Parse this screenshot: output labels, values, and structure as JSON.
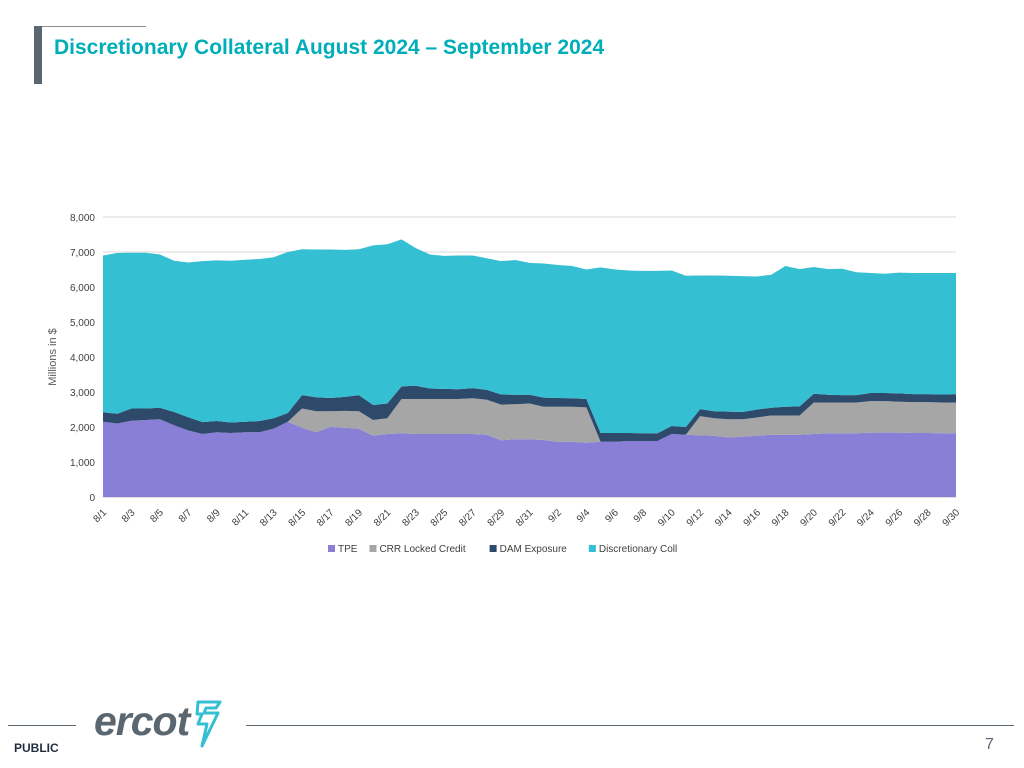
{
  "slide": {
    "title": "Discretionary Collateral August 2024 – September 2024",
    "classification": "PUBLIC",
    "page_number": "7",
    "logo_text": "ercot"
  },
  "colors": {
    "title": "#00aeb9",
    "TPE": "#8a7fd6",
    "CRR Locked Credit": "#a6a6a6",
    "DAM Exposure": "#2e4a6b",
    "Discretionary Coll": "#35bfd3",
    "logo": "#5b6770",
    "logo_accent": "#35bfd3"
  },
  "chart_data": {
    "type": "area",
    "stacked": true,
    "ylabel": "Millions in $",
    "xlabel": "",
    "ylim": [
      0,
      8000
    ],
    "yticks": [
      0,
      1000,
      2000,
      3000,
      4000,
      5000,
      6000,
      7000,
      8000
    ],
    "ytick_labels": [
      "0",
      "1,000",
      "2,000",
      "3,000",
      "4,000",
      "5,000",
      "6,000",
      "7,000",
      "8,000"
    ],
    "grid": true,
    "legend_position": "bottom",
    "x": [
      "8/1",
      "8/2",
      "8/3",
      "8/4",
      "8/5",
      "8/6",
      "8/7",
      "8/8",
      "8/9",
      "8/10",
      "8/11",
      "8/12",
      "8/13",
      "8/14",
      "8/15",
      "8/16",
      "8/17",
      "8/18",
      "8/19",
      "8/20",
      "8/21",
      "8/22",
      "8/23",
      "8/24",
      "8/25",
      "8/26",
      "8/27",
      "8/28",
      "8/29",
      "8/30",
      "8/31",
      "9/1",
      "9/2",
      "9/3",
      "9/4",
      "9/5",
      "9/6",
      "9/7",
      "9/8",
      "9/9",
      "9/10",
      "9/11",
      "9/12",
      "9/13",
      "9/14",
      "9/15",
      "9/16",
      "9/17",
      "9/18",
      "9/19",
      "9/20",
      "9/21",
      "9/22",
      "9/23",
      "9/24",
      "9/25",
      "9/26",
      "9/27",
      "9/28",
      "9/29",
      "9/30"
    ],
    "xtick_labels": [
      "8/1",
      "8/3",
      "8/5",
      "8/7",
      "8/9",
      "8/11",
      "8/13",
      "8/15",
      "8/17",
      "8/19",
      "8/21",
      "8/23",
      "8/25",
      "8/27",
      "8/29",
      "8/31",
      "9/2",
      "9/4",
      "9/6",
      "9/8",
      "9/10",
      "9/12",
      "9/14",
      "9/16",
      "9/18",
      "9/20",
      "9/22",
      "9/24",
      "9/26",
      "9/28",
      "9/30"
    ],
    "series": [
      {
        "name": "TPE",
        "values": [
          2150,
          2100,
          2180,
          2200,
          2220,
          2050,
          1900,
          1800,
          1850,
          1830,
          1850,
          1850,
          1950,
          2150,
          1980,
          1850,
          2000,
          1980,
          1950,
          1750,
          1800,
          1820,
          1800,
          1800,
          1800,
          1800,
          1800,
          1780,
          1620,
          1650,
          1650,
          1630,
          1580,
          1580,
          1550,
          1580,
          1580,
          1600,
          1600,
          1600,
          1800,
          1780,
          1760,
          1750,
          1700,
          1720,
          1750,
          1780,
          1780,
          1780,
          1800,
          1820,
          1820,
          1820,
          1840,
          1840,
          1840,
          1830,
          1830,
          1820,
          1820
        ]
      },
      {
        "name": "CRR Locked Credit",
        "values": [
          0,
          0,
          0,
          0,
          0,
          0,
          0,
          0,
          0,
          0,
          0,
          0,
          0,
          0,
          550,
          600,
          450,
          480,
          500,
          450,
          450,
          980,
          1000,
          1000,
          1000,
          1000,
          1020,
          1000,
          1020,
          1000,
          1020,
          950,
          1000,
          1000,
          1010,
          0,
          0,
          0,
          0,
          0,
          0,
          0,
          550,
          500,
          520,
          500,
          520,
          550,
          550,
          550,
          900,
          880,
          880,
          880,
          900,
          900,
          880,
          880,
          880,
          880,
          880
        ]
      },
      {
        "name": "DAM Exposure",
        "values": [
          270,
          280,
          350,
          330,
          330,
          380,
          380,
          340,
          320,
          300,
          300,
          320,
          300,
          250,
          380,
          400,
          380,
          400,
          460,
          430,
          420,
          360,
          380,
          300,
          290,
          280,
          290,
          280,
          290,
          270,
          250,
          260,
          250,
          240,
          240,
          250,
          250,
          230,
          220,
          220,
          230,
          220,
          200,
          200,
          220,
          210,
          230,
          220,
          250,
          260,
          250,
          220,
          210,
          210,
          230,
          230,
          240,
          230,
          230,
          230,
          240
        ]
      },
      {
        "name": "Discretionary Coll",
        "values": [
          4480,
          4590,
          4450,
          4450,
          4380,
          4320,
          4420,
          4600,
          4590,
          4620,
          4630,
          4630,
          4600,
          4600,
          4170,
          4220,
          4240,
          4200,
          4170,
          4560,
          4550,
          4200,
          3930,
          3830,
          3800,
          3820,
          3790,
          3760,
          3810,
          3850,
          3770,
          3830,
          3800,
          3780,
          3700,
          4730,
          4670,
          4640,
          4640,
          4640,
          4440,
          4320,
          3820,
          3880,
          3880,
          3880,
          3800,
          3800,
          4020,
          3920,
          3620,
          3590,
          3610,
          3510,
          3430,
          3410,
          3450,
          3460,
          3460,
          3470,
          3460
        ]
      }
    ]
  }
}
